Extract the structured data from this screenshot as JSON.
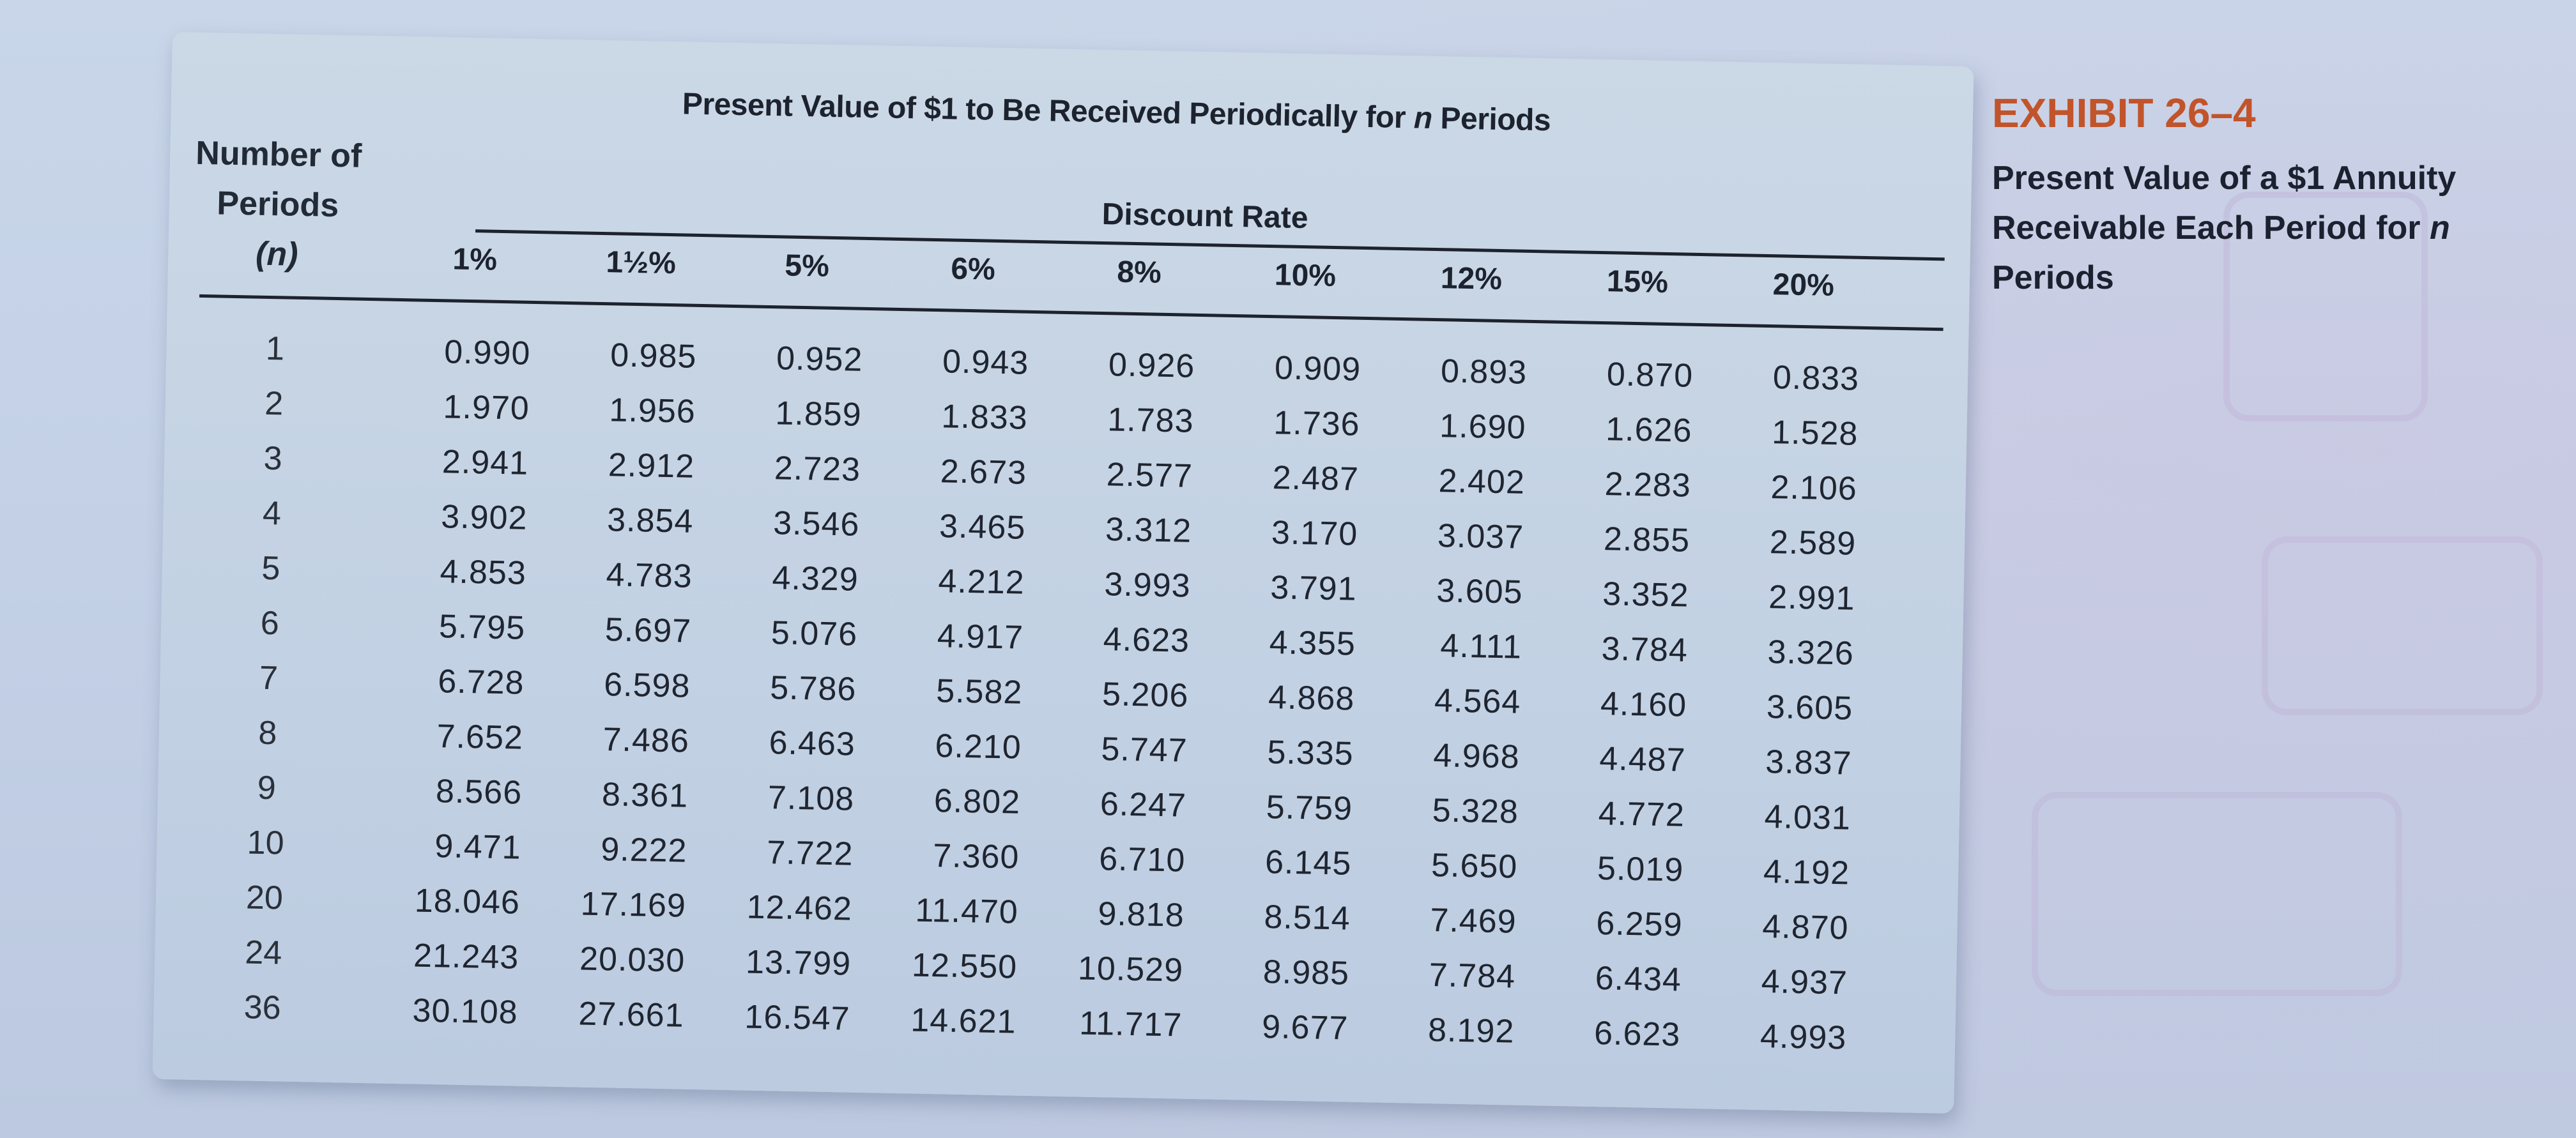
{
  "exhibit": {
    "number": "EXHIBIT 26–4",
    "caption_parts": [
      "Present Value of a $1 Annuity Receivable Each Period for ",
      "n",
      " Periods"
    ],
    "accent_color": "#c1542a"
  },
  "table": {
    "title_parts": [
      "Present Value of $1 to Be Received Periodically for ",
      "n",
      " Periods"
    ],
    "discount_rate_label": "Discount Rate",
    "period_header_lines": [
      "Number of",
      "Periods",
      "(n)"
    ],
    "rates": [
      "1%",
      "1½%",
      "5%",
      "6%",
      "8%",
      "10%",
      "12%",
      "15%",
      "20%"
    ],
    "rows": [
      {
        "n": "1",
        "values": [
          "0.990",
          "0.985",
          "0.952",
          "0.943",
          "0.926",
          "0.909",
          "0.893",
          "0.870",
          "0.833"
        ]
      },
      {
        "n": "2",
        "values": [
          "1.970",
          "1.956",
          "1.859",
          "1.833",
          "1.783",
          "1.736",
          "1.690",
          "1.626",
          "1.528"
        ]
      },
      {
        "n": "3",
        "values": [
          "2.941",
          "2.912",
          "2.723",
          "2.673",
          "2.577",
          "2.487",
          "2.402",
          "2.283",
          "2.106"
        ]
      },
      {
        "n": "4",
        "values": [
          "3.902",
          "3.854",
          "3.546",
          "3.465",
          "3.312",
          "3.170",
          "3.037",
          "2.855",
          "2.589"
        ]
      },
      {
        "n": "5",
        "values": [
          "4.853",
          "4.783",
          "4.329",
          "4.212",
          "3.993",
          "3.791",
          "3.605",
          "3.352",
          "2.991"
        ]
      },
      {
        "n": "6",
        "values": [
          "5.795",
          "5.697",
          "5.076",
          "4.917",
          "4.623",
          "4.355",
          "4.111",
          "3.784",
          "3.326"
        ]
      },
      {
        "n": "7",
        "values": [
          "6.728",
          "6.598",
          "5.786",
          "5.582",
          "5.206",
          "4.868",
          "4.564",
          "4.160",
          "3.605"
        ]
      },
      {
        "n": "8",
        "values": [
          "7.652",
          "7.486",
          "6.463",
          "6.210",
          "5.747",
          "5.335",
          "4.968",
          "4.487",
          "3.837"
        ]
      },
      {
        "n": "9",
        "values": [
          "8.566",
          "8.361",
          "7.108",
          "6.802",
          "6.247",
          "5.759",
          "5.328",
          "4.772",
          "4.031"
        ]
      },
      {
        "n": "10",
        "values": [
          "9.471",
          "9.222",
          "7.722",
          "7.360",
          "6.710",
          "6.145",
          "5.650",
          "5.019",
          "4.192"
        ]
      },
      {
        "n": "20",
        "values": [
          "18.046",
          "17.169",
          "12.462",
          "11.470",
          "9.818",
          "8.514",
          "7.469",
          "6.259",
          "4.870"
        ]
      },
      {
        "n": "24",
        "values": [
          "21.243",
          "20.030",
          "13.799",
          "12.550",
          "10.529",
          "8.985",
          "7.784",
          "6.434",
          "4.937"
        ]
      },
      {
        "n": "36",
        "values": [
          "30.108",
          "27.661",
          "16.547",
          "14.621",
          "11.717",
          "9.677",
          "8.192",
          "6.623",
          "4.993"
        ]
      }
    ]
  }
}
